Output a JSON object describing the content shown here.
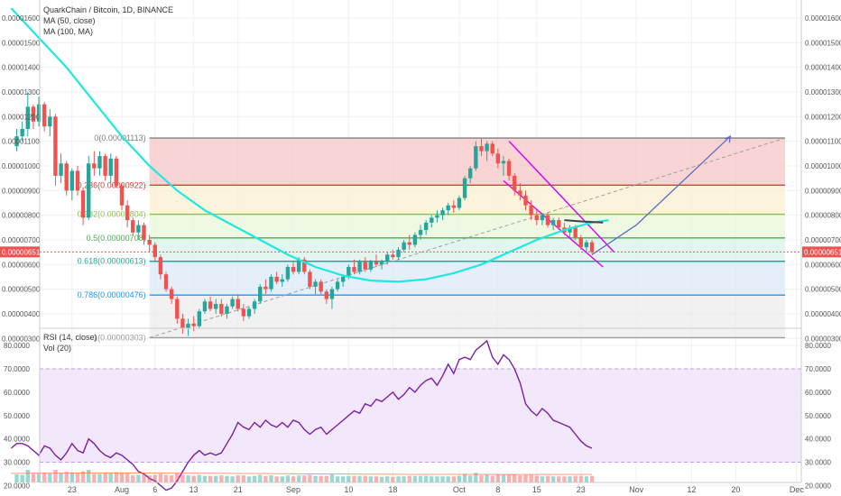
{
  "header": {
    "title": "QuarkChain / Bitcoin, 1D, BINANCE",
    "ma50": "MA (50, close)",
    "ma100": "MA (100, MA)",
    "rsi": "RSI (14, close)",
    "vol": "Vol (20)"
  },
  "price_axis": {
    "ticks": [
      "0.00001600",
      "0.00001500",
      "0.00001400",
      "0.00001300",
      "0.00001200",
      "0.00001100",
      "0.00001000",
      "0.00000900",
      "0.00000800",
      "0.00000700",
      "0.00000600",
      "0.00000500",
      "0.00000400",
      "0.00000300"
    ],
    "tick_values": [
      1600,
      1500,
      1400,
      1300,
      1200,
      1100,
      1000,
      900,
      800,
      700,
      600,
      500,
      400,
      300
    ],
    "current": "0.00000651",
    "current_value": 651
  },
  "rsi_axis": {
    "ticks": [
      "80.0000",
      "70.0000",
      "60.0000",
      "50.0000",
      "40.0000",
      "30.0000",
      "20.0000"
    ],
    "tick_values": [
      80,
      70,
      60,
      50,
      40,
      30,
      20
    ]
  },
  "date_axis": {
    "labels": [
      "23",
      "Aug",
      "6",
      "13",
      "21",
      "Sep",
      "10",
      "18",
      "Oct",
      "8",
      "15",
      "23",
      "Nov",
      "12",
      "20",
      "Dec"
    ],
    "days": [
      -9,
      0,
      6,
      13,
      21,
      31,
      41,
      49,
      61,
      68,
      75,
      83,
      93,
      103,
      111,
      122
    ]
  },
  "fib": [
    {
      "label": "0(0.00001113)",
      "value": 1113,
      "color": "#808080",
      "zone": "#f5c6c6"
    },
    {
      "label": "0.236(0.00000922)",
      "value": 922,
      "color": "#e53935",
      "zone": "#fbefd2"
    },
    {
      "label": "0.382(0.00000804)",
      "value": 804,
      "color": "#8bc34a",
      "zone": "#e9f5d9"
    },
    {
      "label": "0.5(0.00000708)",
      "value": 708,
      "color": "#4caf50",
      "zone": "#d9f2e9"
    },
    {
      "label": "0.618(0.00000613)",
      "value": 613,
      "color": "#26a69a",
      "zone": "#dbeaf8"
    },
    {
      "label": "0.786(0.00000476)",
      "value": 476,
      "color": "#2196f3",
      "zone": "#ececec"
    },
    {
      "label": "1(0.00000303)",
      "value": 303,
      "color": "#9e9e9e",
      "zone": "#d6d6f2"
    }
  ],
  "colors": {
    "up": "#26a69a",
    "down": "#ef5350",
    "ma": "#1de9e0",
    "ma2": "#37474f",
    "rsi": "#7b1fa2",
    "channel": "#d500f9",
    "projection": "#5c6bc0",
    "price_tag": "#ef5350"
  },
  "chart_data": {
    "type": "candlestick",
    "title": "QuarkChain / Bitcoin, 1D, BINANCE",
    "y_unit": "1e-8 BTC",
    "ylim": [
      260,
      1640
    ],
    "xlim_days": [
      -20,
      128
    ],
    "candles": [
      [
        -19,
        1080,
        1150,
        1060,
        1120
      ],
      [
        -18,
        1120,
        1180,
        1100,
        1150
      ],
      [
        -17,
        1150,
        1300,
        1120,
        1240
      ],
      [
        -16,
        1240,
        1250,
        1150,
        1180
      ],
      [
        -15,
        1180,
        1280,
        1160,
        1250
      ],
      [
        -14,
        1250,
        1260,
        1140,
        1160
      ],
      [
        -13,
        1160,
        1230,
        1120,
        1200
      ],
      [
        -12,
        1200,
        1210,
        920,
        960
      ],
      [
        -11,
        960,
        1050,
        930,
        1010
      ],
      [
        -10,
        1010,
        1020,
        880,
        900
      ],
      [
        -9,
        900,
        990,
        860,
        980
      ],
      [
        -8,
        980,
        1000,
        880,
        900
      ],
      [
        -7,
        900,
        910,
        760,
        790
      ],
      [
        -6,
        790,
        1040,
        780,
        1010
      ],
      [
        -5,
        1010,
        1060,
        960,
        990
      ],
      [
        -4,
        990,
        1060,
        960,
        1040
      ],
      [
        -3,
        1040,
        1050,
        940,
        960
      ],
      [
        -2,
        960,
        1050,
        930,
        1030
      ],
      [
        -1,
        1030,
        1040,
        910,
        920
      ],
      [
        0,
        920,
        930,
        820,
        840
      ],
      [
        1,
        840,
        860,
        750,
        780
      ],
      [
        2,
        780,
        790,
        720,
        730
      ],
      [
        3,
        730,
        780,
        700,
        760
      ],
      [
        4,
        760,
        770,
        680,
        700
      ],
      [
        5,
        700,
        720,
        650,
        680
      ],
      [
        6,
        680,
        690,
        610,
        630
      ],
      [
        7,
        630,
        640,
        540,
        560
      ],
      [
        8,
        560,
        570,
        490,
        500
      ],
      [
        9,
        500,
        510,
        440,
        460
      ],
      [
        10,
        460,
        470,
        360,
        380
      ],
      [
        11,
        380,
        400,
        320,
        340
      ],
      [
        12,
        340,
        380,
        310,
        360
      ],
      [
        13,
        360,
        390,
        330,
        350
      ],
      [
        14,
        350,
        420,
        340,
        410
      ],
      [
        15,
        410,
        460,
        400,
        450
      ],
      [
        16,
        450,
        470,
        410,
        420
      ],
      [
        17,
        420,
        460,
        400,
        440
      ],
      [
        18,
        440,
        460,
        390,
        400
      ],
      [
        19,
        400,
        440,
        380,
        430
      ],
      [
        20,
        430,
        470,
        420,
        460
      ],
      [
        21,
        460,
        480,
        410,
        420
      ],
      [
        22,
        420,
        440,
        370,
        390
      ],
      [
        23,
        390,
        430,
        380,
        420
      ],
      [
        24,
        420,
        460,
        400,
        450
      ],
      [
        25,
        450,
        520,
        440,
        510
      ],
      [
        26,
        510,
        540,
        480,
        500
      ],
      [
        27,
        500,
        560,
        490,
        550
      ],
      [
        28,
        550,
        570,
        520,
        530
      ],
      [
        29,
        530,
        560,
        510,
        540
      ],
      [
        30,
        540,
        600,
        530,
        590
      ],
      [
        31,
        590,
        610,
        560,
        570
      ],
      [
        32,
        570,
        630,
        560,
        620
      ],
      [
        33,
        620,
        630,
        560,
        570
      ],
      [
        34,
        570,
        580,
        500,
        510
      ],
      [
        35,
        510,
        540,
        480,
        530
      ],
      [
        36,
        530,
        540,
        480,
        490
      ],
      [
        37,
        490,
        500,
        440,
        460
      ],
      [
        38,
        460,
        510,
        420,
        500
      ],
      [
        39,
        500,
        540,
        490,
        530
      ],
      [
        40,
        530,
        560,
        510,
        550
      ],
      [
        41,
        550,
        600,
        540,
        590
      ],
      [
        42,
        590,
        620,
        560,
        570
      ],
      [
        43,
        570,
        620,
        560,
        610
      ],
      [
        44,
        610,
        630,
        570,
        580
      ],
      [
        45,
        580,
        620,
        570,
        610
      ],
      [
        46,
        610,
        640,
        590,
        600
      ],
      [
        47,
        600,
        620,
        580,
        610
      ],
      [
        48,
        610,
        650,
        600,
        640
      ],
      [
        49,
        640,
        660,
        620,
        630
      ],
      [
        50,
        630,
        670,
        620,
        660
      ],
      [
        51,
        660,
        700,
        650,
        690
      ],
      [
        52,
        690,
        720,
        660,
        680
      ],
      [
        53,
        680,
        730,
        670,
        720
      ],
      [
        54,
        720,
        760,
        700,
        740
      ],
      [
        55,
        740,
        780,
        720,
        770
      ],
      [
        56,
        770,
        800,
        750,
        790
      ],
      [
        57,
        790,
        820,
        770,
        800
      ],
      [
        58,
        800,
        830,
        780,
        820
      ],
      [
        59,
        820,
        850,
        800,
        840
      ],
      [
        60,
        840,
        860,
        810,
        830
      ],
      [
        61,
        830,
        880,
        820,
        870
      ],
      [
        62,
        870,
        960,
        860,
        950
      ],
      [
        63,
        950,
        1000,
        930,
        990
      ],
      [
        64,
        990,
        1100,
        980,
        1080
      ],
      [
        65,
        1080,
        1110,
        1040,
        1060
      ],
      [
        66,
        1060,
        1100,
        1020,
        1090
      ],
      [
        67,
        1090,
        1100,
        1040,
        1050
      ],
      [
        68,
        1050,
        1070,
        990,
        1010
      ],
      [
        69,
        1010,
        1040,
        960,
        1020
      ],
      [
        70,
        1020,
        1030,
        940,
        960
      ],
      [
        71,
        960,
        970,
        880,
        900
      ],
      [
        72,
        900,
        930,
        860,
        880
      ],
      [
        73,
        880,
        900,
        820,
        840
      ],
      [
        74,
        840,
        860,
        780,
        800
      ],
      [
        75,
        800,
        820,
        760,
        780
      ],
      [
        76,
        780,
        810,
        760,
        800
      ],
      [
        77,
        800,
        810,
        750,
        760
      ],
      [
        78,
        760,
        790,
        740,
        780
      ],
      [
        79,
        780,
        790,
        740,
        750
      ],
      [
        80,
        750,
        770,
        720,
        730
      ],
      [
        81,
        730,
        760,
        710,
        750
      ],
      [
        82,
        750,
        760,
        700,
        710
      ],
      [
        83,
        710,
        720,
        660,
        670
      ],
      [
        84,
        670,
        700,
        650,
        690
      ],
      [
        85,
        690,
        700,
        640,
        651
      ]
    ],
    "ma_label": "MA (50, close)",
    "ma": [
      [
        -20,
        1640
      ],
      [
        -15,
        1520
      ],
      [
        -10,
        1400
      ],
      [
        -5,
        1260
      ],
      [
        0,
        1120
      ],
      [
        5,
        1000
      ],
      [
        10,
        900
      ],
      [
        15,
        820
      ],
      [
        20,
        760
      ],
      [
        25,
        700
      ],
      [
        30,
        640
      ],
      [
        35,
        590
      ],
      [
        40,
        555
      ],
      [
        45,
        535
      ],
      [
        50,
        530
      ],
      [
        55,
        540
      ],
      [
        60,
        565
      ],
      [
        65,
        600
      ],
      [
        70,
        650
      ],
      [
        75,
        700
      ],
      [
        80,
        740
      ],
      [
        85,
        770
      ],
      [
        88,
        780
      ]
    ],
    "ma2_label": "MA (100, MA)",
    "ma2": [
      [
        80,
        780
      ],
      [
        83,
        775
      ],
      [
        87,
        770
      ]
    ],
    "rsi_label": "RSI (14, close)",
    "rsi": [
      [
        -20,
        36
      ],
      [
        -19,
        38
      ],
      [
        -18,
        38
      ],
      [
        -17,
        37
      ],
      [
        -16,
        35
      ],
      [
        -15,
        33
      ],
      [
        -14,
        37
      ],
      [
        -13,
        36
      ],
      [
        -12,
        33
      ],
      [
        -11,
        31
      ],
      [
        -10,
        34
      ],
      [
        -9,
        38
      ],
      [
        -8,
        35
      ],
      [
        -7,
        34
      ],
      [
        -6,
        40
      ],
      [
        -5,
        38
      ],
      [
        -4,
        35
      ],
      [
        -3,
        33
      ],
      [
        -2,
        32
      ],
      [
        -1,
        34
      ],
      [
        0,
        33
      ],
      [
        1,
        31
      ],
      [
        2,
        29
      ],
      [
        3,
        26
      ],
      [
        4,
        25
      ],
      [
        5,
        23
      ],
      [
        6,
        22
      ],
      [
        7,
        20
      ],
      [
        8,
        18
      ],
      [
        9,
        19
      ],
      [
        10,
        22
      ],
      [
        11,
        26
      ],
      [
        12,
        30
      ],
      [
        13,
        33
      ],
      [
        14,
        35
      ],
      [
        15,
        33
      ],
      [
        16,
        34
      ],
      [
        17,
        33
      ],
      [
        18,
        34
      ],
      [
        19,
        38
      ],
      [
        20,
        42
      ],
      [
        21,
        47
      ],
      [
        22,
        45
      ],
      [
        23,
        44
      ],
      [
        24,
        47
      ],
      [
        25,
        45
      ],
      [
        26,
        48
      ],
      [
        27,
        46
      ],
      [
        28,
        45
      ],
      [
        29,
        47
      ],
      [
        30,
        45
      ],
      [
        31,
        48
      ],
      [
        32,
        47
      ],
      [
        33,
        44
      ],
      [
        34,
        42
      ],
      [
        35,
        44
      ],
      [
        36,
        45
      ],
      [
        37,
        42
      ],
      [
        38,
        44
      ],
      [
        39,
        46
      ],
      [
        40,
        48
      ],
      [
        41,
        50
      ],
      [
        42,
        52
      ],
      [
        43,
        51
      ],
      [
        44,
        55
      ],
      [
        45,
        54
      ],
      [
        46,
        57
      ],
      [
        47,
        56
      ],
      [
        48,
        58
      ],
      [
        49,
        60
      ],
      [
        50,
        57
      ],
      [
        51,
        59
      ],
      [
        52,
        62
      ],
      [
        53,
        60
      ],
      [
        54,
        63
      ],
      [
        55,
        65
      ],
      [
        56,
        66
      ],
      [
        57,
        63
      ],
      [
        58,
        67
      ],
      [
        59,
        72
      ],
      [
        60,
        68
      ],
      [
        61,
        74
      ],
      [
        62,
        75
      ],
      [
        63,
        74
      ],
      [
        64,
        78
      ],
      [
        65,
        80
      ],
      [
        66,
        82
      ],
      [
        67,
        75
      ],
      [
        68,
        72
      ],
      [
        69,
        76
      ],
      [
        70,
        74
      ],
      [
        71,
        70
      ],
      [
        72,
        64
      ],
      [
        73,
        55
      ],
      [
        74,
        52
      ],
      [
        75,
        50
      ],
      [
        76,
        53
      ],
      [
        77,
        51
      ],
      [
        78,
        48
      ],
      [
        79,
        47
      ],
      [
        80,
        46
      ],
      [
        81,
        45
      ],
      [
        82,
        42
      ],
      [
        83,
        39
      ],
      [
        84,
        37
      ],
      [
        85,
        36
      ]
    ],
    "vol_label": "Vol (20)"
  }
}
